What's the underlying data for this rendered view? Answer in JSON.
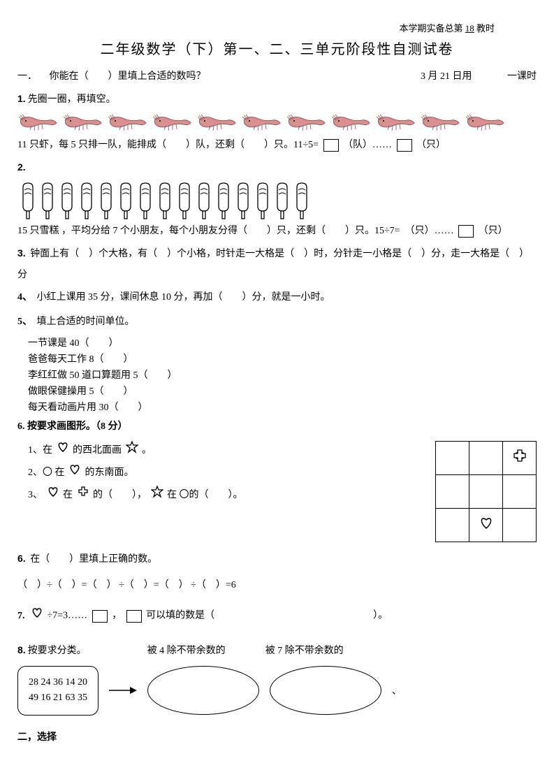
{
  "header": {
    "note_prefix": "本学期实备总第",
    "note_num": "18",
    "note_suffix": "教时"
  },
  "title": "二年级数学（下）第一、二、三单元阶段性自测试卷",
  "section1": {
    "label": "一．",
    "text": "你能在（　　）里填上合适的数吗？",
    "date": "3 月 21 日用",
    "duration": "一课时"
  },
  "q1": {
    "num": "1.",
    "title": "先圈一圈，再填空。",
    "shrimp_count": 11,
    "text_a": "11 只虾，每 5 只排一队，能排成（　　）队，还剩（　　）只。11÷5=",
    "unit_a": "（队）……",
    "unit_b": "（只）"
  },
  "q2": {
    "num": "2.",
    "ice_count": 15,
    "text": "15 只雪糕 ，平均分给 7 个小朋友，每个小朋友分得（　　）只，还剩（　　）只。15÷7=　（只）……",
    "unit": "（只）"
  },
  "q3": {
    "num": "3.",
    "text": "钟面上有（　）个大格，有（　）个小格，时针走一大格是（　）时，分针走一小格是（　）分，走一大格是（　）",
    "text2": "分"
  },
  "q4": {
    "num": "4、",
    "text": "小红上课用 35 分，课间休息 10 分，再加（　　）分，就是一小时。"
  },
  "q5": {
    "num": "5、",
    "title": "填上合适的时间单位。",
    "items": [
      "一节课是 40（　　）",
      "爸爸每天工作 8（　　）",
      "李红红做 50 道口算题用 5（　　）",
      "做眼保健操用 5（　　）",
      "每天看动画片用 30（　　）"
    ]
  },
  "q6": {
    "num": "6.",
    "title": "按要求画图形。（8 分）",
    "sub1_a": "1、在",
    "sub1_b": "的西北面画",
    "sub1_c": "。",
    "sub2_a": "2、〇 在",
    "sub2_b": "的东南面。",
    "sub3_a": "3、",
    "sub3_b": "在",
    "sub3_c": "的（　　），",
    "sub3_d": "在 〇的（　　）。"
  },
  "q6b": {
    "num": "6.",
    "text": "在（　　）里填上正确的数。",
    "eq": "（　）÷（　）=（　） ÷（　）=（　） ÷（　）=6"
  },
  "q7": {
    "num": "7.",
    "text_a": "÷7=3……",
    "text_b": "，",
    "text_c": "可以填的数是（",
    "text_d": "）。"
  },
  "q8": {
    "num": "8.",
    "title": "按要求分类。",
    "label1": "被 4 除不带余数的",
    "label2": "被 7 除不带余数的",
    "nums_line1": "28 24 36 14 20",
    "nums_line2": "49 16 21 63 35",
    "trailing": "、"
  },
  "section2": "二，选择",
  "colors": {
    "shrimp_body": "#d89090",
    "shrimp_outline": "#8b4444"
  }
}
